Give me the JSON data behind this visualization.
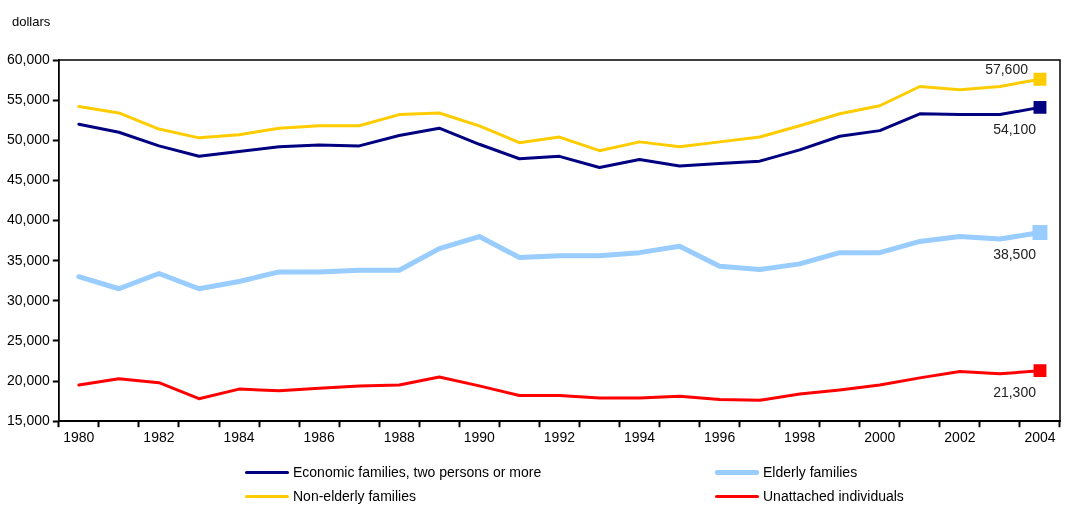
{
  "chart_data": {
    "type": "line",
    "ylabel": "dollars",
    "categories": [
      "1980",
      null,
      "1982",
      null,
      "1984",
      null,
      "1986",
      null,
      "1988",
      null,
      "1990",
      null,
      "1992",
      null,
      "1994",
      null,
      "1996",
      null,
      "1998",
      null,
      "2000",
      null,
      "2002",
      null,
      "2004"
    ],
    "ylim": [
      15000,
      60000
    ],
    "yticks": [
      {
        "value": 15000,
        "label": "15,000"
      },
      {
        "value": 20000,
        "label": "20,000"
      },
      {
        "value": 25000,
        "label": "25,000"
      },
      {
        "value": 30000,
        "label": "30,000"
      },
      {
        "value": 35000,
        "label": "35,000"
      },
      {
        "value": 40000,
        "label": "40,000"
      },
      {
        "value": 45000,
        "label": "45,000"
      },
      {
        "value": 50000,
        "label": "50,000"
      },
      {
        "value": 55000,
        "label": "55,000"
      },
      {
        "value": 60000,
        "label": "60,000"
      }
    ],
    "grid": false,
    "legend": "bottom",
    "line_style": "solid",
    "series": [
      {
        "name": "Economic families, two persons or more",
        "color": "#000080",
        "values": [
          52000,
          51000,
          49300,
          48000,
          48600,
          49200,
          49400,
          49300,
          50600,
          51500,
          49500,
          47700,
          48000,
          46600,
          47600,
          46800,
          47100,
          47400,
          48800,
          50500,
          51200,
          53300,
          53200,
          53200,
          54100
        ],
        "value_labels": [
          null,
          null,
          null,
          null,
          null,
          null,
          null,
          null,
          null,
          null,
          null,
          null,
          null,
          null,
          null,
          null,
          null,
          null,
          null,
          null,
          null,
          null,
          null,
          null,
          "54,100"
        ]
      },
      {
        "name": "Elderly families",
        "color": "#99ccff",
        "values": [
          33000,
          31500,
          33400,
          31500,
          32400,
          33600,
          33600,
          33800,
          33800,
          36500,
          38000,
          35400,
          35600,
          35600,
          36000,
          36800,
          34300,
          33900,
          34600,
          36000,
          36000,
          37400,
          38000,
          37700,
          38500
        ],
        "value_labels": [
          null,
          null,
          null,
          null,
          null,
          null,
          null,
          null,
          null,
          null,
          null,
          null,
          null,
          null,
          null,
          null,
          null,
          null,
          null,
          null,
          null,
          null,
          null,
          null,
          "38,500"
        ]
      },
      {
        "name": "Non-elderly families",
        "color": "#ffcc00",
        "values": [
          54200,
          53400,
          51400,
          50300,
          50700,
          51500,
          51800,
          51800,
          53200,
          53400,
          51800,
          49700,
          50400,
          48700,
          49800,
          49200,
          49800,
          50400,
          51800,
          53300,
          54300,
          56700,
          56300,
          56700,
          57600
        ],
        "value_labels": [
          null,
          null,
          null,
          null,
          null,
          null,
          null,
          null,
          null,
          null,
          null,
          null,
          null,
          null,
          null,
          null,
          null,
          null,
          null,
          null,
          null,
          null,
          null,
          null,
          "57,600"
        ]
      },
      {
        "name": "Unattached individuals",
        "color": "#ff0000",
        "values": [
          19500,
          20300,
          19800,
          17800,
          19000,
          18800,
          19100,
          19400,
          19500,
          20500,
          19400,
          18200,
          18200,
          17900,
          17900,
          18100,
          17700,
          17600,
          18400,
          18900,
          19500,
          20400,
          21200,
          20900,
          21300
        ],
        "value_labels": [
          null,
          null,
          null,
          null,
          null,
          null,
          null,
          null,
          null,
          null,
          null,
          null,
          null,
          null,
          null,
          null,
          null,
          null,
          null,
          null,
          null,
          null,
          null,
          null,
          "21,300"
        ]
      }
    ]
  }
}
